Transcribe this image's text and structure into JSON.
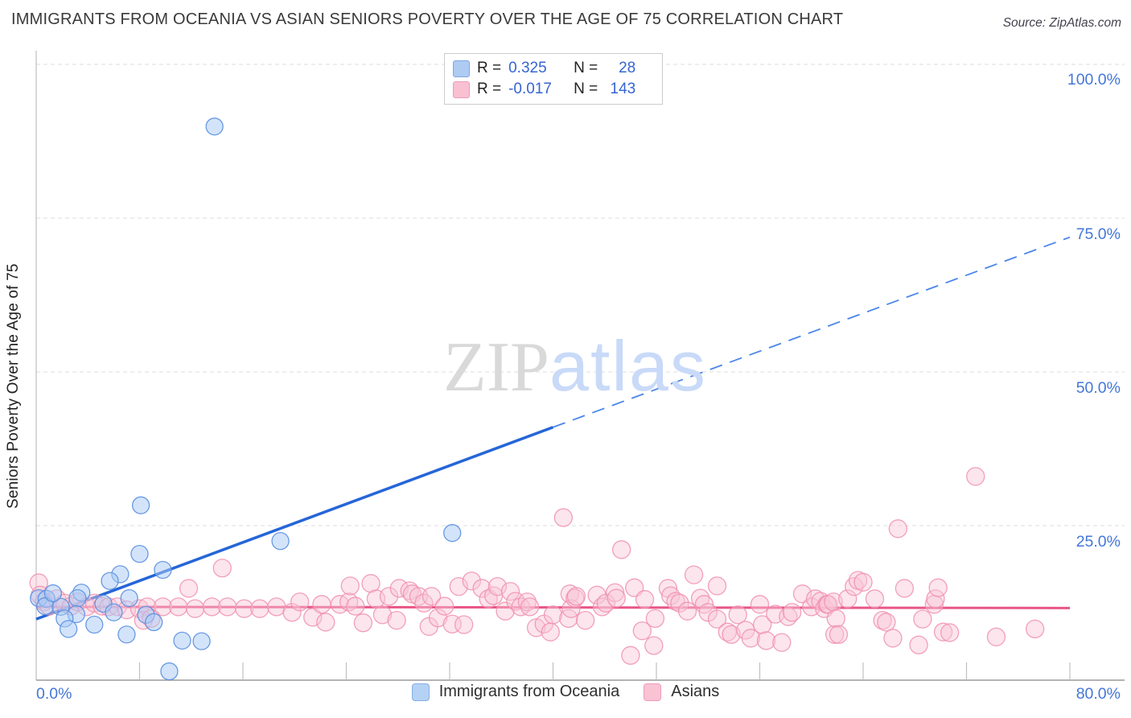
{
  "header": {
    "title": "IMMIGRANTS FROM OCEANIA VS ASIAN SENIORS POVERTY OVER THE AGE OF 75 CORRELATION CHART",
    "source": "Source: ZipAtlas.com"
  },
  "watermark": {
    "zip": "ZIP",
    "atlas": "atlas"
  },
  "legend_box": {
    "rows": [
      {
        "r_label": "R =",
        "r_value": "0.325",
        "n_label": "N =",
        "n_value": "28"
      },
      {
        "r_label": "R =",
        "r_value": "-0.017",
        "n_label": "N =",
        "n_value": "143"
      }
    ]
  },
  "y_axis": {
    "title": "Seniors Poverty Over the Age of 75",
    "tick_labels": {
      "t100": "100.0%",
      "t75": "75.0%",
      "t50": "50.0%",
      "t25": "25.0%"
    }
  },
  "x_axis": {
    "min_label": "0.0%",
    "max_label": "80.0%"
  },
  "bottom_legend": {
    "series1": "Immigrants from Oceania",
    "series2": "Asians"
  },
  "colors": {
    "accent_label_blue": "#4477d8",
    "blue_point_fill": "#a8c9f5",
    "blue_point_stroke": "#5a8fe0",
    "pink_point_fill": "#f8c6d6",
    "pink_point_stroke": "#f090ae",
    "blue_trend": "#2566d8",
    "pink_trend": "#e85585",
    "gridline": "#dcdcdc",
    "axis": "#9a9a9a"
  },
  "chart_data": {
    "type": "scatter",
    "title": "IMMIGRANTS FROM OCEANIA VS ASIAN SENIORS POVERTY OVER THE AGE OF 75 CORRELATION CHART",
    "xlabel": "Immigrants from Oceania (%)",
    "ylabel": "Seniors Poverty Over the Age of 75",
    "xlim": [
      0,
      80
    ],
    "ylim": [
      0,
      102
    ],
    "x_tick_step_percent": 8,
    "gridlines_y_percent": [
      25,
      50,
      75,
      100
    ],
    "grid": "dashed-horizontal",
    "legend_position": "top-center-and-bottom-center",
    "units": "percent",
    "series": [
      {
        "name": "Immigrants from Oceania",
        "R": 0.325,
        "N": 28,
        "points": [
          [
            13.8,
            89.9
          ],
          [
            8.1,
            28.3
          ],
          [
            32.2,
            23.8
          ],
          [
            18.9,
            22.5
          ],
          [
            8.0,
            20.4
          ],
          [
            9.8,
            17.8
          ],
          [
            6.5,
            17.1
          ],
          [
            5.7,
            16.0
          ],
          [
            3.5,
            14.1
          ],
          [
            0.2,
            13.2
          ],
          [
            0.8,
            13.1
          ],
          [
            3.2,
            13.2
          ],
          [
            7.2,
            13.2
          ],
          [
            0.7,
            11.9
          ],
          [
            1.9,
            11.8
          ],
          [
            5.2,
            12.3
          ],
          [
            8.5,
            10.5
          ],
          [
            3.1,
            10.6
          ],
          [
            9.1,
            9.3
          ],
          [
            2.2,
            9.9
          ],
          [
            2.5,
            8.2
          ],
          [
            4.5,
            8.9
          ],
          [
            7.0,
            7.3
          ],
          [
            11.3,
            6.3
          ],
          [
            12.8,
            6.2
          ],
          [
            10.3,
            1.3
          ],
          [
            1.3,
            14.0
          ],
          [
            6.0,
            10.9
          ]
        ]
      },
      {
        "name": "Asians",
        "R": -0.017,
        "N": 143,
        "points": [
          [
            0.2,
            15.7
          ],
          [
            0.3,
            13.7
          ],
          [
            0.6,
            12.6
          ],
          [
            1.0,
            11.9
          ],
          [
            1.6,
            13.1
          ],
          [
            2.2,
            12.4
          ],
          [
            2.7,
            11.9
          ],
          [
            3.2,
            12.6
          ],
          [
            3.9,
            11.8
          ],
          [
            4.5,
            12.4
          ],
          [
            5.1,
            11.9
          ],
          [
            5.6,
            11.8
          ],
          [
            6.3,
            11.8
          ],
          [
            7.0,
            11.3
          ],
          [
            8.0,
            11.5
          ],
          [
            8.6,
            11.8
          ],
          [
            9.8,
            11.8
          ],
          [
            11.0,
            11.8
          ],
          [
            12.3,
            11.5
          ],
          [
            13.6,
            11.8
          ],
          [
            14.8,
            11.8
          ],
          [
            16.1,
            11.5
          ],
          [
            17.3,
            11.5
          ],
          [
            18.6,
            11.8
          ],
          [
            19.8,
            10.9
          ],
          [
            20.4,
            12.6
          ],
          [
            8.3,
            9.6
          ],
          [
            8.9,
            9.9
          ],
          [
            11.8,
            14.8
          ],
          [
            14.4,
            18.1
          ],
          [
            21.4,
            10.1
          ],
          [
            22.1,
            12.2
          ],
          [
            22.4,
            9.3
          ],
          [
            23.5,
            12.2
          ],
          [
            24.2,
            12.6
          ],
          [
            24.3,
            15.2
          ],
          [
            24.7,
            11.9
          ],
          [
            25.3,
            9.2
          ],
          [
            25.9,
            15.6
          ],
          [
            26.3,
            13.1
          ],
          [
            26.8,
            10.5
          ],
          [
            27.3,
            13.5
          ],
          [
            27.9,
            9.6
          ],
          [
            28.1,
            14.8
          ],
          [
            28.9,
            14.4
          ],
          [
            29.1,
            13.9
          ],
          [
            29.6,
            13.5
          ],
          [
            30.0,
            12.4
          ],
          [
            30.4,
            8.6
          ],
          [
            30.6,
            13.5
          ],
          [
            31.1,
            10.0
          ],
          [
            31.6,
            11.9
          ],
          [
            32.2,
            9.0
          ],
          [
            32.7,
            15.1
          ],
          [
            33.1,
            8.9
          ],
          [
            33.7,
            16.0
          ],
          [
            34.5,
            14.8
          ],
          [
            35.0,
            13.1
          ],
          [
            35.4,
            13.6
          ],
          [
            35.7,
            15.1
          ],
          [
            36.3,
            11.1
          ],
          [
            36.7,
            14.3
          ],
          [
            37.1,
            12.7
          ],
          [
            37.5,
            11.8
          ],
          [
            38.0,
            12.6
          ],
          [
            38.2,
            11.8
          ],
          [
            38.7,
            8.4
          ],
          [
            39.3,
            9.0
          ],
          [
            39.8,
            7.7
          ],
          [
            40.0,
            10.5
          ],
          [
            40.8,
            26.3
          ],
          [
            41.2,
            9.9
          ],
          [
            41.3,
            13.9
          ],
          [
            41.4,
            11.5
          ],
          [
            41.7,
            13.2
          ],
          [
            41.8,
            13.5
          ],
          [
            42.5,
            9.6
          ],
          [
            43.4,
            13.7
          ],
          [
            43.8,
            11.8
          ],
          [
            44.1,
            12.4
          ],
          [
            44.8,
            14.1
          ],
          [
            44.9,
            13.2
          ],
          [
            45.3,
            21.1
          ],
          [
            46.0,
            3.9
          ],
          [
            46.3,
            14.9
          ],
          [
            46.9,
            7.9
          ],
          [
            47.1,
            13.0
          ],
          [
            47.8,
            5.5
          ],
          [
            47.9,
            9.9
          ],
          [
            48.9,
            14.8
          ],
          [
            49.1,
            13.6
          ],
          [
            49.5,
            12.7
          ],
          [
            49.8,
            12.4
          ],
          [
            50.4,
            11.1
          ],
          [
            50.9,
            17.0
          ],
          [
            51.4,
            13.2
          ],
          [
            51.7,
            12.2
          ],
          [
            52.0,
            10.9
          ],
          [
            52.7,
            15.2
          ],
          [
            52.7,
            9.8
          ],
          [
            53.5,
            7.7
          ],
          [
            53.8,
            7.3
          ],
          [
            54.3,
            10.5
          ],
          [
            54.9,
            8.0
          ],
          [
            55.3,
            6.7
          ],
          [
            56.0,
            12.2
          ],
          [
            56.2,
            8.9
          ],
          [
            56.5,
            6.3
          ],
          [
            57.2,
            10.6
          ],
          [
            57.7,
            6.0
          ],
          [
            58.2,
            10.2
          ],
          [
            58.5,
            10.9
          ],
          [
            59.3,
            13.9
          ],
          [
            60.0,
            11.8
          ],
          [
            60.3,
            13.1
          ],
          [
            60.7,
            12.7
          ],
          [
            61.0,
            11.5
          ],
          [
            61.2,
            12.2
          ],
          [
            61.3,
            12.2
          ],
          [
            61.7,
            12.6
          ],
          [
            61.8,
            7.3
          ],
          [
            61.9,
            9.9
          ],
          [
            62.1,
            7.3
          ],
          [
            62.8,
            13.1
          ],
          [
            63.3,
            15.1
          ],
          [
            63.6,
            16.1
          ],
          [
            64.0,
            15.8
          ],
          [
            64.9,
            13.1
          ],
          [
            65.5,
            9.6
          ],
          [
            65.8,
            9.3
          ],
          [
            66.3,
            6.7
          ],
          [
            66.7,
            24.5
          ],
          [
            67.2,
            14.8
          ],
          [
            68.3,
            5.6
          ],
          [
            68.6,
            9.8
          ],
          [
            69.5,
            12.2
          ],
          [
            69.6,
            13.1
          ],
          [
            69.8,
            14.9
          ],
          [
            70.2,
            7.7
          ],
          [
            70.7,
            7.6
          ],
          [
            72.7,
            33.0
          ],
          [
            74.3,
            6.9
          ],
          [
            77.3,
            8.2
          ]
        ]
      }
    ],
    "trend_lines": [
      {
        "series": "Immigrants from Oceania",
        "solid_segment": {
          "from": [
            0,
            9.8
          ],
          "to": [
            40,
            41.0
          ]
        },
        "dashed_segment": {
          "from": [
            40,
            41.0
          ],
          "to": [
            80,
            71.9
          ]
        }
      },
      {
        "series": "Asians",
        "solid_segment": {
          "from": [
            0,
            11.8
          ],
          "to": [
            80,
            11.6
          ]
        }
      }
    ]
  }
}
